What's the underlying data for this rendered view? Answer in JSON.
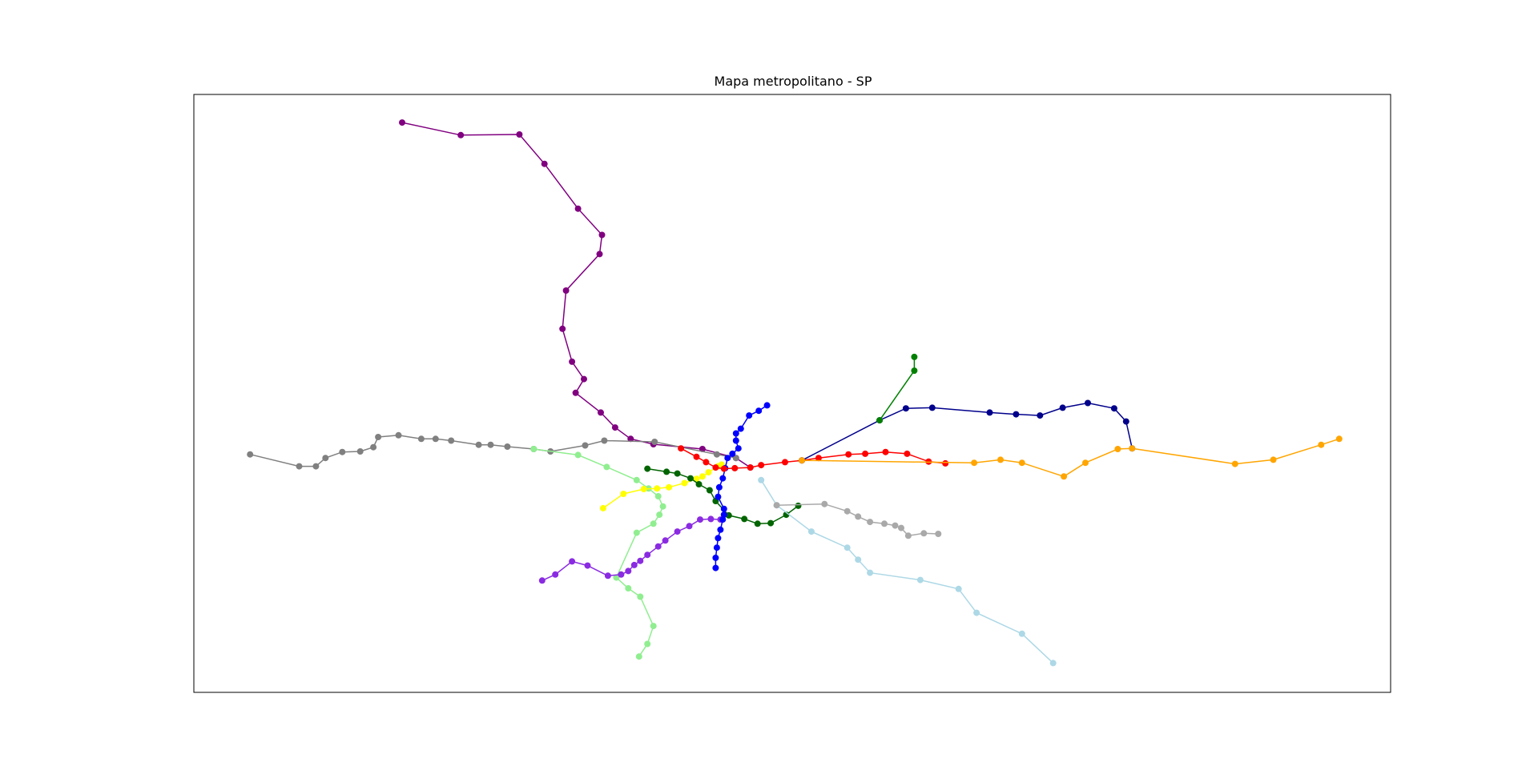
{
  "chart_data": {
    "type": "line",
    "title": "Mapa metropolitano - SP",
    "xlabel": "",
    "ylabel": "",
    "grid": false,
    "axes_ticks_visible": false,
    "legend": "none",
    "xlim": [
      0,
      1
    ],
    "ylim": [
      0,
      1
    ],
    "series": [
      {
        "color": "#800080",
        "points": [
          [
            0.174,
            0.953
          ],
          [
            0.223,
            0.932
          ],
          [
            0.272,
            0.933
          ],
          [
            0.293,
            0.884
          ],
          [
            0.321,
            0.809
          ],
          [
            0.341,
            0.765
          ],
          [
            0.339,
            0.733
          ],
          [
            0.311,
            0.672
          ],
          [
            0.308,
            0.608
          ],
          [
            0.316,
            0.553
          ],
          [
            0.326,
            0.524
          ],
          [
            0.319,
            0.501
          ],
          [
            0.34,
            0.468
          ],
          [
            0.352,
            0.443
          ],
          [
            0.365,
            0.424
          ],
          [
            0.384,
            0.415
          ],
          [
            0.425,
            0.407
          ],
          [
            0.453,
            0.392
          ],
          [
            0.465,
            0.376
          ]
        ]
      },
      {
        "color": "#808080",
        "points": [
          [
            0.047,
            0.398
          ],
          [
            0.088,
            0.378
          ],
          [
            0.102,
            0.378
          ],
          [
            0.11,
            0.392
          ],
          [
            0.124,
            0.402
          ],
          [
            0.139,
            0.403
          ],
          [
            0.15,
            0.41
          ],
          [
            0.154,
            0.427
          ],
          [
            0.171,
            0.43
          ],
          [
            0.19,
            0.424
          ],
          [
            0.202,
            0.424
          ],
          [
            0.215,
            0.421
          ],
          [
            0.238,
            0.414
          ],
          [
            0.248,
            0.414
          ],
          [
            0.262,
            0.411
          ],
          [
            0.284,
            0.407
          ],
          [
            0.298,
            0.403
          ],
          [
            0.327,
            0.413
          ],
          [
            0.343,
            0.421
          ],
          [
            0.385,
            0.419
          ],
          [
            0.437,
            0.398
          ],
          [
            0.453,
            0.392
          ]
        ]
      },
      {
        "color": "#90ee90",
        "points": [
          [
            0.284,
            0.407
          ],
          [
            0.321,
            0.397
          ],
          [
            0.345,
            0.377
          ],
          [
            0.37,
            0.355
          ],
          [
            0.38,
            0.341
          ],
          [
            0.388,
            0.328
          ],
          [
            0.392,
            0.311
          ],
          [
            0.389,
            0.297
          ],
          [
            0.384,
            0.282
          ],
          [
            0.37,
            0.267
          ],
          [
            0.353,
            0.192
          ],
          [
            0.363,
            0.174
          ],
          [
            0.373,
            0.16
          ],
          [
            0.384,
            0.111
          ],
          [
            0.379,
            0.081
          ],
          [
            0.372,
            0.06
          ]
        ]
      },
      {
        "color": "#ffff00",
        "points": [
          [
            0.342,
            0.308
          ],
          [
            0.359,
            0.332
          ],
          [
            0.376,
            0.34
          ],
          [
            0.387,
            0.341
          ],
          [
            0.397,
            0.343
          ],
          [
            0.41,
            0.35
          ],
          [
            0.42,
            0.357
          ],
          [
            0.425,
            0.361
          ],
          [
            0.43,
            0.368
          ],
          [
            0.438,
            0.378
          ],
          [
            0.441,
            0.381
          ]
        ]
      },
      {
        "color": "#006400",
        "points": [
          [
            0.379,
            0.374
          ],
          [
            0.395,
            0.369
          ],
          [
            0.404,
            0.366
          ],
          [
            0.415,
            0.358
          ],
          [
            0.422,
            0.348
          ],
          [
            0.431,
            0.338
          ],
          [
            0.436,
            0.32
          ],
          [
            0.447,
            0.296
          ],
          [
            0.46,
            0.29
          ],
          [
            0.471,
            0.282
          ],
          [
            0.482,
            0.283
          ],
          [
            0.495,
            0.297
          ],
          [
            0.505,
            0.312
          ]
        ]
      },
      {
        "color": "#8a2be2",
        "points": [
          [
            0.291,
            0.187
          ],
          [
            0.302,
            0.197
          ],
          [
            0.316,
            0.219
          ],
          [
            0.329,
            0.212
          ],
          [
            0.346,
            0.195
          ],
          [
            0.357,
            0.197
          ],
          [
            0.363,
            0.203
          ],
          [
            0.368,
            0.213
          ],
          [
            0.373,
            0.22
          ],
          [
            0.379,
            0.23
          ],
          [
            0.388,
            0.244
          ],
          [
            0.394,
            0.254
          ],
          [
            0.404,
            0.269
          ],
          [
            0.414,
            0.278
          ],
          [
            0.423,
            0.289
          ],
          [
            0.432,
            0.29
          ],
          [
            0.44,
            0.289
          ],
          [
            0.443,
            0.297
          ]
        ]
      },
      {
        "color": "#0000ff",
        "points": [
          [
            0.436,
            0.208
          ],
          [
            0.436,
            0.225
          ],
          [
            0.437,
            0.242
          ],
          [
            0.438,
            0.258
          ],
          [
            0.44,
            0.272
          ],
          [
            0.442,
            0.289
          ],
          [
            0.443,
            0.297
          ],
          [
            0.443,
            0.307
          ],
          [
            0.438,
            0.327
          ],
          [
            0.439,
            0.343
          ],
          [
            0.442,
            0.358
          ],
          [
            0.444,
            0.375
          ],
          [
            0.446,
            0.392
          ],
          [
            0.45,
            0.399
          ],
          [
            0.455,
            0.408
          ],
          [
            0.453,
            0.421
          ],
          [
            0.453,
            0.433
          ],
          [
            0.457,
            0.441
          ],
          [
            0.464,
            0.463
          ],
          [
            0.472,
            0.471
          ],
          [
            0.479,
            0.48
          ]
        ]
      },
      {
        "color": "#ff0000",
        "points": [
          [
            0.407,
            0.408
          ],
          [
            0.42,
            0.394
          ],
          [
            0.428,
            0.385
          ],
          [
            0.436,
            0.376
          ],
          [
            0.443,
            0.374
          ],
          [
            0.452,
            0.375
          ],
          [
            0.465,
            0.376
          ],
          [
            0.474,
            0.38
          ],
          [
            0.494,
            0.385
          ],
          [
            0.508,
            0.388
          ],
          [
            0.522,
            0.392
          ],
          [
            0.547,
            0.398
          ],
          [
            0.561,
            0.399
          ],
          [
            0.578,
            0.402
          ],
          [
            0.596,
            0.399
          ],
          [
            0.614,
            0.386
          ],
          [
            0.628,
            0.383
          ]
        ]
      },
      {
        "color": "#add8e6",
        "points": [
          [
            0.474,
            0.355
          ],
          [
            0.487,
            0.313
          ],
          [
            0.516,
            0.269
          ],
          [
            0.546,
            0.242
          ],
          [
            0.555,
            0.222
          ],
          [
            0.565,
            0.2
          ],
          [
            0.607,
            0.188
          ],
          [
            0.639,
            0.173
          ],
          [
            0.654,
            0.133
          ],
          [
            0.692,
            0.098
          ],
          [
            0.718,
            0.049
          ]
        ]
      },
      {
        "color": "#a9a9a9",
        "points": [
          [
            0.487,
            0.313
          ],
          [
            0.527,
            0.315
          ],
          [
            0.546,
            0.303
          ],
          [
            0.555,
            0.294
          ],
          [
            0.565,
            0.285
          ],
          [
            0.577,
            0.282
          ],
          [
            0.586,
            0.279
          ],
          [
            0.591,
            0.275
          ],
          [
            0.597,
            0.262
          ],
          [
            0.61,
            0.266
          ],
          [
            0.622,
            0.265
          ]
        ]
      },
      {
        "color": "#00008b",
        "points": [
          [
            0.508,
            0.388
          ],
          [
            0.573,
            0.455
          ],
          [
            0.595,
            0.475
          ],
          [
            0.617,
            0.476
          ],
          [
            0.665,
            0.468
          ],
          [
            0.687,
            0.465
          ],
          [
            0.707,
            0.463
          ],
          [
            0.726,
            0.476
          ],
          [
            0.747,
            0.484
          ],
          [
            0.769,
            0.475
          ],
          [
            0.779,
            0.453
          ],
          [
            0.784,
            0.408
          ]
        ]
      },
      {
        "color": "#008000",
        "points": [
          [
            0.573,
            0.455
          ],
          [
            0.602,
            0.538
          ],
          [
            0.602,
            0.561
          ]
        ]
      },
      {
        "color": "#ffa500",
        "points": [
          [
            0.508,
            0.388
          ],
          [
            0.652,
            0.384
          ],
          [
            0.674,
            0.389
          ],
          [
            0.692,
            0.384
          ],
          [
            0.727,
            0.361
          ],
          [
            0.745,
            0.384
          ],
          [
            0.772,
            0.407
          ],
          [
            0.784,
            0.408
          ],
          [
            0.87,
            0.382
          ],
          [
            0.902,
            0.389
          ],
          [
            0.942,
            0.414
          ],
          [
            0.957,
            0.424
          ]
        ]
      }
    ]
  }
}
